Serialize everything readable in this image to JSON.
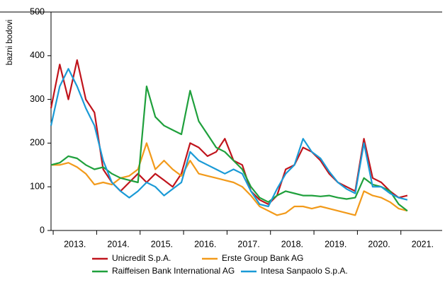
{
  "chart_data": {
    "type": "line",
    "y_label": "bazni bodovi",
    "x": [
      2012.95,
      2013.15,
      2013.35,
      2013.55,
      2013.75,
      2013.95,
      2014.15,
      2014.35,
      2014.55,
      2014.75,
      2014.95,
      2015.15,
      2015.35,
      2015.55,
      2015.75,
      2015.95,
      2016.15,
      2016.35,
      2016.55,
      2016.75,
      2016.95,
      2017.15,
      2017.35,
      2017.55,
      2017.75,
      2017.95,
      2018.15,
      2018.35,
      2018.55,
      2018.75,
      2018.95,
      2019.15,
      2019.35,
      2019.55,
      2019.75,
      2019.95,
      2020.15,
      2020.35,
      2020.55,
      2020.75,
      2020.95,
      2021.15
    ],
    "series": [
      {
        "name": "Unicredit S.p.A.",
        "color": "#c0141c",
        "values": [
          280,
          380,
          300,
          390,
          300,
          270,
          140,
          110,
          90,
          110,
          130,
          110,
          130,
          115,
          100,
          130,
          200,
          190,
          170,
          180,
          210,
          160,
          150,
          90,
          70,
          60,
          80,
          140,
          150,
          190,
          180,
          160,
          130,
          110,
          100,
          90,
          210,
          120,
          110,
          90,
          75,
          80
        ]
      },
      {
        "name": "Erste Group Bank AG",
        "color": "#f29a1a",
        "values": [
          150,
          150,
          155,
          145,
          130,
          105,
          110,
          105,
          120,
          125,
          140,
          200,
          140,
          160,
          140,
          125,
          160,
          130,
          125,
          120,
          115,
          110,
          100,
          80,
          55,
          45,
          35,
          40,
          55,
          55,
          50,
          55,
          50,
          45,
          40,
          35,
          90,
          80,
          75,
          65,
          50,
          45
        ]
      },
      {
        "name": "Raiffeisen Bank International AG",
        "color": "#1fa03c",
        "values": [
          150,
          155,
          170,
          165,
          150,
          140,
          145,
          130,
          120,
          115,
          110,
          330,
          260,
          240,
          230,
          220,
          320,
          250,
          220,
          190,
          180,
          160,
          140,
          100,
          75,
          65,
          80,
          90,
          85,
          80,
          80,
          78,
          80,
          75,
          72,
          75,
          120,
          105,
          100,
          90,
          60,
          45
        ]
      },
      {
        "name": "Intesa Sanpaolo S.p.A.",
        "color": "#1a9ad6",
        "values": [
          240,
          330,
          370,
          330,
          280,
          240,
          160,
          110,
          90,
          75,
          90,
          110,
          100,
          80,
          95,
          110,
          180,
          160,
          150,
          140,
          130,
          140,
          130,
          90,
          60,
          55,
          95,
          130,
          150,
          210,
          180,
          165,
          135,
          110,
          95,
          85,
          200,
          100,
          100,
          85,
          75,
          70
        ]
      }
    ],
    "xlim": [
      2012.95,
      2021.95
    ],
    "xticks": [
      {
        "value": 2013.5,
        "label": "2013."
      },
      {
        "value": 2014.5,
        "label": "2014."
      },
      {
        "value": 2015.5,
        "label": "2015."
      },
      {
        "value": 2016.5,
        "label": "2016."
      },
      {
        "value": 2017.5,
        "label": "2017."
      },
      {
        "value": 2018.5,
        "label": "2018."
      },
      {
        "value": 2019.5,
        "label": "2019."
      },
      {
        "value": 2020.5,
        "label": "2020."
      },
      {
        "value": 2021.5,
        "label": "2021."
      }
    ],
    "ylim": [
      0,
      500
    ],
    "yticks": [
      0,
      100,
      200,
      300,
      400,
      500
    ],
    "grid": false
  }
}
